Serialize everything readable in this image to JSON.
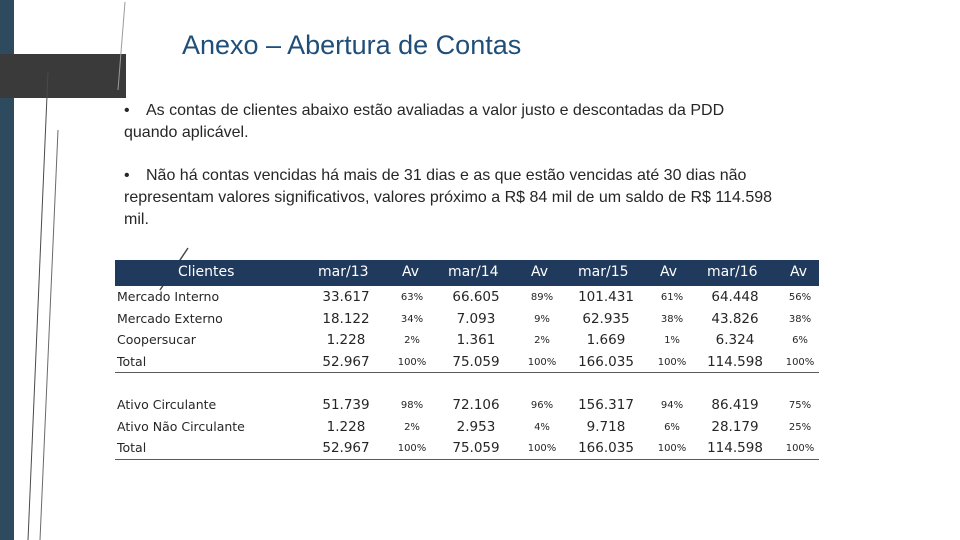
{
  "slide": {
    "title": "Anexo – Abertura de Contas",
    "bullets": [
      "As contas de clientes abaixo estão avaliadas a valor justo e descontadas da PDD quando aplicável.",
      "Não há contas vencidas há mais de 31 dias e as que estão vencidas até 30 dias não representam valores significativos, valores próximo a R$ 84 mil de um saldo de R$ 114.598 mil."
    ],
    "bullet_symbol": "•"
  },
  "table": {
    "headers": [
      "Clientes",
      "mar/13",
      "Av",
      "mar/14",
      "Av",
      "mar/15",
      "Av",
      "mar/16",
      "Av"
    ],
    "section1": [
      [
        "Mercado Interno",
        "33.617",
        "63%",
        "66.605",
        "89%",
        "101.431",
        "61%",
        "64.448",
        "56%"
      ],
      [
        "Mercado Externo",
        "18.122",
        "34%",
        "7.093",
        "9%",
        "62.935",
        "38%",
        "43.826",
        "38%"
      ],
      [
        "Coopersucar",
        "1.228",
        "2%",
        "1.361",
        "2%",
        "1.669",
        "1%",
        "6.324",
        "6%"
      ],
      [
        "Total",
        "52.967",
        "100%",
        "75.059",
        "100%",
        "166.035",
        "100%",
        "114.598",
        "100%"
      ]
    ],
    "section2": [
      [
        "Ativo Circulante",
        "51.739",
        "98%",
        "72.106",
        "96%",
        "156.317",
        "94%",
        "86.419",
        "75%"
      ],
      [
        "Ativo Não Circulante",
        "1.228",
        "2%",
        "2.953",
        "4%",
        "9.718",
        "6%",
        "28.179",
        "25%"
      ],
      [
        "Total",
        "52.967",
        "100%",
        "75.059",
        "100%",
        "166.035",
        "100%",
        "114.598",
        "100%"
      ]
    ]
  },
  "colors": {
    "title": "#1f4e79",
    "header_bg": "#1f3a5c",
    "sidebar": "#2e4a5e",
    "title_tab": "#3a3a3a"
  }
}
